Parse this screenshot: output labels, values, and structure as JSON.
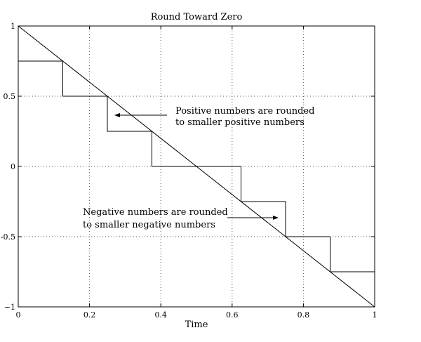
{
  "chart_data": {
    "type": "line",
    "title": "Round Toward Zero",
    "xlabel": "Time",
    "ylabel": "",
    "xlim": [
      0,
      1
    ],
    "ylim": [
      -1,
      1
    ],
    "grid": true,
    "x_ticks": [
      0,
      0.2,
      0.4,
      0.6,
      0.8,
      1
    ],
    "x_tick_labels": [
      "0",
      "0.2",
      "0.4",
      "0.6",
      "0.8",
      "1"
    ],
    "y_ticks": [
      -1,
      -0.5,
      0,
      0.5,
      1
    ],
    "y_tick_labels": [
      "−1",
      "-0.5",
      "0",
      "0.5",
      "1"
    ],
    "series": [
      {
        "style": "line",
        "x": [
          0,
          1
        ],
        "y": [
          1,
          -1
        ]
      },
      {
        "style": "step",
        "x": [
          0,
          0.125,
          0.125,
          0.25,
          0.25,
          0.375,
          0.375,
          0.625,
          0.625,
          0.75,
          0.75,
          0.875,
          0.875,
          1,
          1
        ],
        "y": [
          0.75,
          0.75,
          0.5,
          0.5,
          0.25,
          0.25,
          0,
          0,
          -0.25,
          -0.25,
          -0.5,
          -0.5,
          -0.75,
          -0.75,
          -0.68
        ]
      }
    ],
    "annotations": [
      {
        "lines": [
          "Positive numbers are rounded",
          "to smaller positive numbers"
        ],
        "arrow_to": [
          0.265,
          0.365
        ]
      },
      {
        "lines": [
          "Negative numbers are rounded",
          "to smaller negative numbers"
        ],
        "arrow_to": [
          0.735,
          -0.365
        ]
      }
    ]
  }
}
